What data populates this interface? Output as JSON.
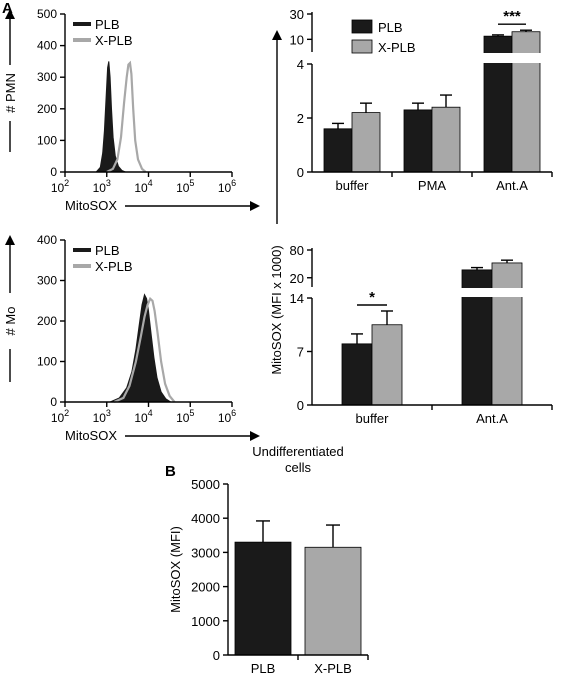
{
  "panel_labels": {
    "a": "A",
    "b": "B"
  },
  "colors": {
    "plb": "#1a1a1a",
    "xplb": "#a8a8a8",
    "axis": "#000000"
  },
  "chart_data": [
    {
      "id": "hist-pmn",
      "type": "area",
      "ylabel": "# PMN",
      "xlabel": "MitoSOX",
      "xscale": "log",
      "xlim": [
        100,
        1000000
      ],
      "ylim": [
        0,
        500
      ],
      "yticks": [
        "0",
        "100",
        "200",
        "300",
        "400",
        "500"
      ],
      "xticks": [
        {
          "base": "10",
          "exp": "2",
          "v": 100
        },
        {
          "base": "10",
          "exp": "3",
          "v": 1000
        },
        {
          "base": "10",
          "exp": "4",
          "v": 10000
        },
        {
          "base": "10",
          "exp": "5",
          "v": 100000
        },
        {
          "base": "10",
          "exp": "6",
          "v": 1000000
        }
      ],
      "legend": [
        "PLB",
        "X-PLB"
      ],
      "series": [
        {
          "name": "PLB",
          "style": "filled",
          "points": [
            [
              560,
              0
            ],
            [
              700,
              15
            ],
            [
              800,
              60
            ],
            [
              880,
              130
            ],
            [
              960,
              230
            ],
            [
              1050,
              330
            ],
            [
              1120,
              350
            ],
            [
              1200,
              300
            ],
            [
              1300,
              200
            ],
            [
              1420,
              110
            ],
            [
              1600,
              50
            ],
            [
              1900,
              18
            ],
            [
              2300,
              5
            ],
            [
              2800,
              0
            ]
          ]
        },
        {
          "name": "X-PLB",
          "style": "line",
          "points": [
            [
              1000,
              0
            ],
            [
              1400,
              10
            ],
            [
              1800,
              40
            ],
            [
              2200,
              110
            ],
            [
              2600,
              220
            ],
            [
              3000,
              300
            ],
            [
              3300,
              340
            ],
            [
              3600,
              345
            ],
            [
              3900,
              310
            ],
            [
              4300,
              200
            ],
            [
              4800,
              100
            ],
            [
              5600,
              40
            ],
            [
              7000,
              10
            ],
            [
              8500,
              0
            ]
          ]
        }
      ]
    },
    {
      "id": "hist-mo",
      "type": "area",
      "ylabel": "# Mo",
      "xlabel": "MitoSOX",
      "xscale": "log",
      "xlim": [
        100,
        1000000
      ],
      "ylim": [
        0,
        400
      ],
      "yticks": [
        "0",
        "100",
        "200",
        "300",
        "400"
      ],
      "xticks": [
        {
          "base": "10",
          "exp": "2",
          "v": 100
        },
        {
          "base": "10",
          "exp": "3",
          "v": 1000
        },
        {
          "base": "10",
          "exp": "4",
          "v": 10000
        },
        {
          "base": "10",
          "exp": "5",
          "v": 100000
        },
        {
          "base": "10",
          "exp": "6",
          "v": 1000000
        }
      ],
      "legend": [
        "PLB",
        "X-PLB"
      ],
      "series": [
        {
          "name": "PLB",
          "style": "filled",
          "points": [
            [
              1200,
              0
            ],
            [
              2000,
              10
            ],
            [
              3000,
              35
            ],
            [
              4000,
              75
            ],
            [
              5000,
              130
            ],
            [
              6000,
              190
            ],
            [
              7000,
              240
            ],
            [
              8000,
              265
            ],
            [
              9000,
              255
            ],
            [
              10000,
              225
            ],
            [
              11500,
              170
            ],
            [
              13500,
              110
            ],
            [
              16000,
              60
            ],
            [
              20000,
              25
            ],
            [
              26000,
              8
            ],
            [
              34000,
              0
            ]
          ]
        },
        {
          "name": "X-PLB",
          "style": "line",
          "points": [
            [
              1500,
              0
            ],
            [
              2500,
              10
            ],
            [
              3500,
              40
            ],
            [
              5000,
              100
            ],
            [
              6500,
              160
            ],
            [
              8000,
              210
            ],
            [
              9500,
              240
            ],
            [
              11000,
              255
            ],
            [
              12500,
              250
            ],
            [
              14000,
              225
            ],
            [
              16500,
              170
            ],
            [
              20000,
              100
            ],
            [
              25000,
              45
            ],
            [
              32000,
              15
            ],
            [
              42000,
              0
            ]
          ]
        }
      ]
    },
    {
      "id": "bar-pmn",
      "type": "bar",
      "categories": [
        "buffer",
        "PMA",
        "Ant.A"
      ],
      "legend": [
        "PLB",
        "X-PLB"
      ],
      "lower_axis": {
        "ylim": [
          0,
          4
        ],
        "ticks": [
          "0",
          "2",
          "4"
        ]
      },
      "upper_axis": {
        "ylim": [
          0,
          30
        ],
        "ticks": [
          "10",
          "30"
        ]
      },
      "series": [
        {
          "name": "PLB",
          "values": [
            1.6,
            2.3,
            12.5
          ],
          "errors": [
            0.2,
            0.25,
            1.0
          ]
        },
        {
          "name": "X-PLB",
          "values": [
            2.2,
            2.4,
            16.0
          ],
          "errors": [
            0.35,
            0.45,
            1.2
          ]
        }
      ],
      "significance": [
        {
          "category": "Ant.A",
          "label": "***"
        }
      ]
    },
    {
      "id": "bar-mo",
      "type": "bar",
      "ylabel": "MitoSOX (MFI x 1000)",
      "categories": [
        "buffer",
        "Ant.A"
      ],
      "legend": [],
      "lower_axis": {
        "ylim": [
          0,
          14
        ],
        "ticks": [
          "0",
          "7",
          "14"
        ]
      },
      "upper_axis": {
        "ylim": [
          0,
          80
        ],
        "ticks": [
          "20",
          "80"
        ]
      },
      "series": [
        {
          "name": "PLB",
          "values": [
            8.0,
            37.0
          ],
          "errors": [
            1.3,
            5.0
          ]
        },
        {
          "name": "X-PLB",
          "values": [
            10.5,
            52.0
          ],
          "errors": [
            1.8,
            6.0
          ]
        }
      ],
      "significance": [
        {
          "category": "buffer",
          "label": "*"
        }
      ]
    },
    {
      "id": "bar-undiff",
      "type": "bar",
      "title": "Undifferentiated cells",
      "ylabel": "MitoSOX (MFI)",
      "categories": [
        "PLB",
        "X-PLB"
      ],
      "ylim": [
        0,
        5000
      ],
      "yticks": [
        "0",
        "1000",
        "2000",
        "3000",
        "4000",
        "5000"
      ],
      "series": [
        {
          "name": "MitoSOX",
          "values": [
            3300,
            3150
          ],
          "errors": [
            620,
            650
          ]
        }
      ]
    }
  ]
}
